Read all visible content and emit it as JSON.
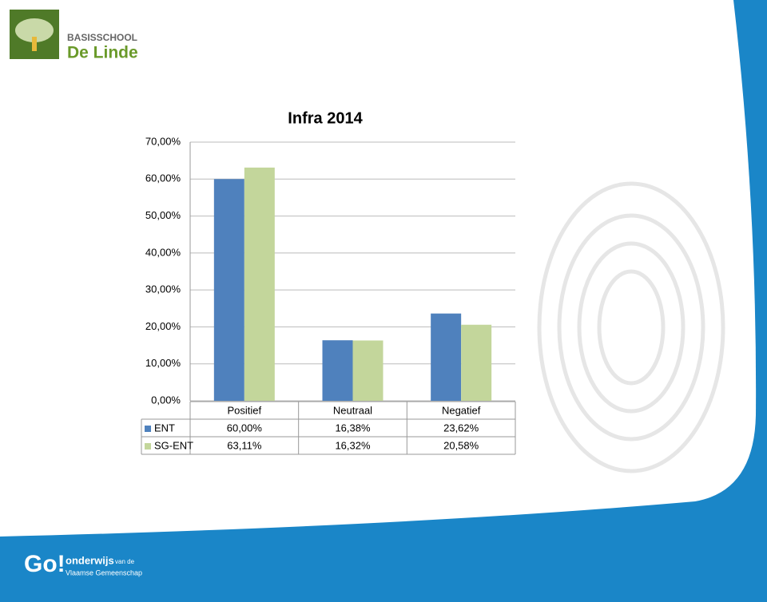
{
  "branding": {
    "school_line1": "BASISSCHOOL",
    "school_line2": "De Linde",
    "footer_logo": "Go!",
    "footer_line1": "onderwijs",
    "footer_line1_small": "van de",
    "footer_line2": "Vlaamse Gemeenschap"
  },
  "chart_data": {
    "type": "bar",
    "title": "Infra 2014",
    "categories": [
      "Positief",
      "Neutraal",
      "Negatief"
    ],
    "series": [
      {
        "name": "ENT",
        "color": "#4f81bd",
        "values": [
          60,
          16.38,
          23.62
        ],
        "value_labels": [
          "60,00%",
          "16,38%",
          "23,62%"
        ]
      },
      {
        "name": "SG-ENT",
        "color": "#c3d69b",
        "values": [
          63.11,
          16.32,
          20.58
        ],
        "value_labels": [
          "63,11%",
          "16,32%",
          "20,58%"
        ]
      }
    ],
    "ylim": [
      0,
      70
    ],
    "yticks": [
      {
        "value": 0,
        "label": "0,00%"
      },
      {
        "value": 10,
        "label": "10,00%"
      },
      {
        "value": 20,
        "label": "20,00%"
      },
      {
        "value": 30,
        "label": "30,00%"
      },
      {
        "value": 40,
        "label": "40,00%"
      },
      {
        "value": 50,
        "label": "50,00%"
      },
      {
        "value": 60,
        "label": "60,00%"
      },
      {
        "value": 70,
        "label": "70,00%"
      }
    ],
    "grid": true
  }
}
